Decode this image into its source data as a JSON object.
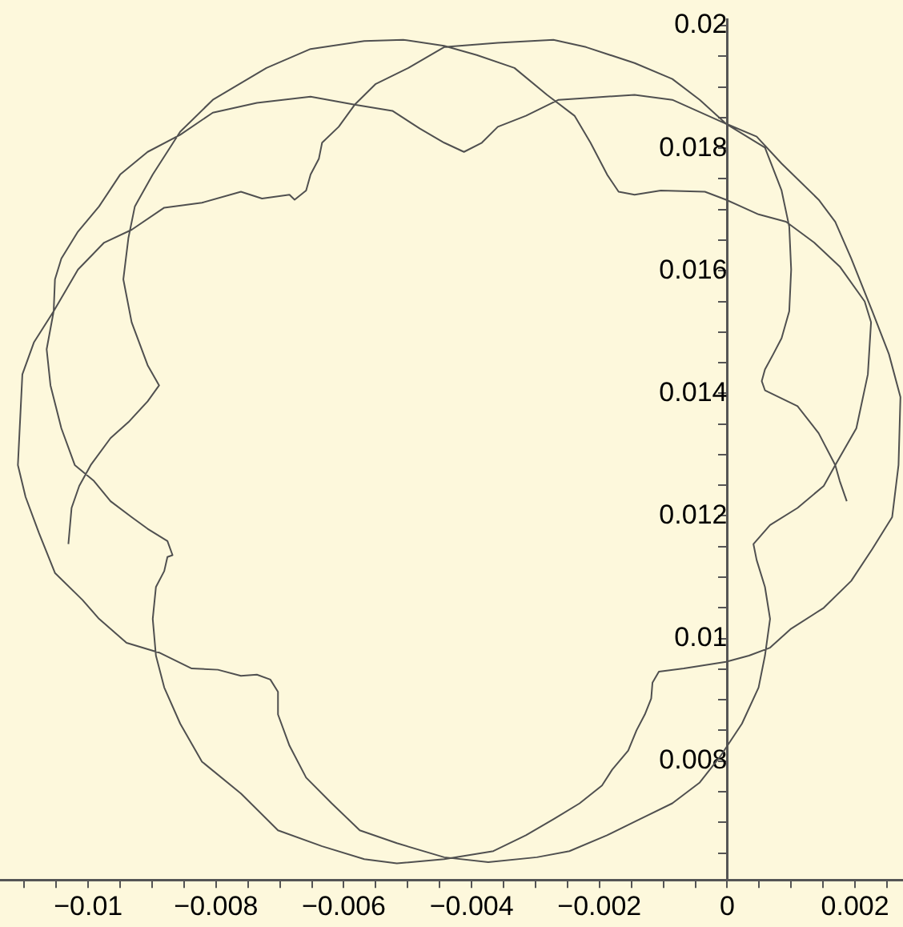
{
  "chart_data": {
    "type": "line",
    "color": "#505050",
    "marker": "none",
    "grid": false,
    "legend": false,
    "line_style": "solid",
    "x": [
      -0.01031,
      -0.01026,
      -0.01014,
      -0.00996,
      -0.00965,
      -0.00937,
      -0.00907,
      -0.00889,
      -0.00907,
      -0.00932,
      -0.00945,
      -0.00937,
      -0.00927,
      -0.00899,
      -0.00856,
      -0.00805,
      -0.00721,
      -0.00652,
      -0.00568,
      -0.00507,
      -0.00443,
      -0.00392,
      -0.00333,
      -0.00282,
      -0.00239,
      -0.00214,
      -0.00188,
      -0.0017,
      -0.00145,
      -0.00104,
      -0.00035,
      -2e-05,
      0.00049,
      0.00092,
      0.00136,
      0.00176,
      0.00215,
      0.00225,
      0.0022,
      0.00202,
      0.00169,
      0.00151,
      0.0011,
      0.00067,
      0.00041,
      0.00046,
      0.00059,
      0.00067,
      0.00059,
      0.00049,
      0.00023,
      -0.0001,
      -0.00043,
      -0.00086,
      -0.00137,
      -0.00188,
      -0.00247,
      -0.00298,
      -0.00374,
      -0.00443,
      -0.00517,
      -0.00575,
      -0.00619,
      -0.00659,
      -0.00685,
      -0.00703,
      -0.00703,
      -0.00715,
      -0.00736,
      -0.00761,
      -0.00797,
      -0.00838,
      -0.00889,
      -0.0094,
      -0.00983,
      -0.01009,
      -0.01052,
      -0.01077,
      -0.01098,
      -0.0111,
      -0.01103,
      -0.01085,
      -0.01054,
      -0.01016,
      -0.00975,
      -0.00932,
      -0.00881,
      -0.00822,
      -0.00761,
      -0.00728,
      -0.00685,
      -0.00677,
      -0.00659,
      -0.00652,
      -0.00639,
      -0.00634,
      -0.00608,
      -0.00583,
      -0.0055,
      -0.00499,
      -0.00443,
      -0.00359,
      -0.00272,
      -0.00221,
      -0.00145,
      -0.00086,
      -0.00043,
      -2e-05,
      0.00046,
      0.00085,
      0.00143,
      0.00169,
      0.00194,
      0.00227,
      0.00253,
      0.00271,
      0.00268,
      0.00258,
      0.00227,
      0.00194,
      0.00151,
      0.001,
      0.00067,
      0.00034,
      -2e-05,
      -0.00068,
      -0.00107,
      -0.00117,
      -0.00119,
      -0.00129,
      -0.00142,
      -0.00155,
      -0.0018,
      -0.00196,
      -0.00231,
      -0.00272,
      -0.00315,
      -0.00366,
      -0.00443,
      -0.00517,
      -0.00568,
      -0.00634,
      -0.00703,
      -0.00761,
      -0.00822,
      -0.00856,
      -0.00881,
      -0.00894,
      -0.00899,
      -0.00894,
      -0.00881,
      -0.00876,
      -0.00868,
      -0.00876,
      -0.00907,
      -0.00932,
      -0.00965,
      -0.00991,
      -0.01021,
      -0.01042,
      -0.01059,
      -0.01065,
      -0.01054,
      -0.01052,
      -0.01042,
      -0.01016,
      -0.00983,
      -0.0095,
      -0.00907,
      -0.00856,
      -0.00805,
      -0.00736,
      -0.00652,
      -0.00583,
      -0.00524,
      -0.00481,
      -0.00443,
      -0.00412,
      -0.00384,
      -0.00359,
      -0.00315,
      -0.00264,
      -0.00221,
      -0.00145,
      -0.00086,
      -2e-05,
      0.00059,
      0.00085,
      0.00097,
      0.001,
      0.00097,
      0.00085,
      0.00072,
      0.00059,
      0.00054,
      0.00059,
      0.0011,
      0.00143,
      0.00169,
      0.00176,
      0.00187
    ],
    "values": [
      0.01154,
      0.01213,
      0.01249,
      0.01283,
      0.01327,
      0.01353,
      0.01387,
      0.01413,
      0.01446,
      0.01516,
      0.01586,
      0.01654,
      0.01705,
      0.01757,
      0.01827,
      0.01879,
      0.01931,
      0.01962,
      0.01975,
      0.01977,
      0.01967,
      0.01952,
      0.01931,
      0.01887,
      0.01853,
      0.01809,
      0.01757,
      0.01729,
      0.01724,
      0.01731,
      0.01729,
      0.01716,
      0.01692,
      0.0168,
      0.01646,
      0.01607,
      0.0155,
      0.01516,
      0.01431,
      0.01343,
      0.01283,
      0.01249,
      0.01213,
      0.01185,
      0.01154,
      0.01128,
      0.01084,
      0.01032,
      0.00972,
      0.0092,
      0.00861,
      0.00809,
      0.00765,
      0.00731,
      0.00705,
      0.00679,
      0.00653,
      0.00643,
      0.00635,
      0.00643,
      0.00666,
      0.00687,
      0.00731,
      0.00773,
      0.00825,
      0.00876,
      0.00913,
      0.00933,
      0.00941,
      0.00939,
      0.00949,
      0.00951,
      0.00977,
      0.00993,
      0.01032,
      0.01063,
      0.01107,
      0.01172,
      0.01231,
      0.01283,
      0.01431,
      0.01483,
      0.01534,
      0.01602,
      0.01646,
      0.01667,
      0.01703,
      0.01711,
      0.01729,
      0.01718,
      0.01724,
      0.01716,
      0.01731,
      0.01757,
      0.01783,
      0.01809,
      0.01835,
      0.01871,
      0.01905,
      0.01931,
      0.01965,
      0.01972,
      0.01977,
      0.01965,
      0.01939,
      0.01913,
      0.01879,
      0.0184,
      0.01819,
      0.01775,
      0.01716,
      0.0168,
      0.0162,
      0.01534,
      0.01464,
      0.01394,
      0.01283,
      0.01198,
      0.01146,
      0.01094,
      0.0105,
      0.01016,
      0.00985,
      0.00972,
      0.00962,
      0.00951,
      0.00946,
      0.00928,
      0.00902,
      0.00876,
      0.0085,
      0.00817,
      0.00786,
      0.0076,
      0.00731,
      0.00705,
      0.00679,
      0.00653,
      0.0064,
      0.00633,
      0.0064,
      0.00661,
      0.00687,
      0.00747,
      0.00799,
      0.00861,
      0.0092,
      0.00972,
      0.01032,
      0.01084,
      0.0111,
      0.01133,
      0.01136,
      0.01159,
      0.01179,
      0.01198,
      0.01224,
      0.01257,
      0.01283,
      0.01343,
      0.01413,
      0.01472,
      0.01534,
      0.01586,
      0.0162,
      0.01664,
      0.01705,
      0.01757,
      0.01794,
      0.01822,
      0.01858,
      0.01874,
      0.01884,
      0.01871,
      0.01861,
      0.01832,
      0.01809,
      0.01794,
      0.01809,
      0.01835,
      0.01853,
      0.01879,
      0.01882,
      0.01887,
      0.01879,
      0.0184,
      0.01801,
      0.01731,
      0.01672,
      0.01602,
      0.01534,
      0.0149,
      0.01464,
      0.01439,
      0.0142,
      0.01405,
      0.01379,
      0.01335,
      0.01283,
      0.01257,
      0.01224
    ],
    "xlim": [
      -0.01138,
      0.00275
    ],
    "xticks": [
      {
        "value": -0.011,
        "label": null
      },
      {
        "value": -0.0105,
        "label": null
      },
      {
        "value": -0.01,
        "label": "−0.01"
      },
      {
        "value": -0.0095,
        "label": null
      },
      {
        "value": -0.009,
        "label": null
      },
      {
        "value": -0.0085,
        "label": null
      },
      {
        "value": -0.008,
        "label": "−0.008"
      },
      {
        "value": -0.0075,
        "label": null
      },
      {
        "value": -0.007,
        "label": null
      },
      {
        "value": -0.0065,
        "label": null
      },
      {
        "value": -0.006,
        "label": "−0.006"
      },
      {
        "value": -0.0055,
        "label": null
      },
      {
        "value": -0.005,
        "label": null
      },
      {
        "value": -0.0045,
        "label": null
      },
      {
        "value": -0.004,
        "label": "−0.004"
      },
      {
        "value": -0.0035,
        "label": null
      },
      {
        "value": -0.003,
        "label": null
      },
      {
        "value": -0.0025,
        "label": null
      },
      {
        "value": -0.002,
        "label": "−0.002"
      },
      {
        "value": -0.0015,
        "label": null
      },
      {
        "value": -0.001,
        "label": null
      },
      {
        "value": -0.0005,
        "label": null
      },
      0,
      {
        "value": 0.0005,
        "label": null
      },
      {
        "value": 0.001,
        "label": null
      },
      {
        "value": 0.0015,
        "label": null
      },
      0.002,
      {
        "value": 0.0025,
        "label": null
      }
    ],
    "ylim": [
      0.00606,
      0.0201
    ],
    "yticks": [
      {
        "value": 0.0065,
        "label": null
      },
      {
        "value": 0.007,
        "label": null
      },
      {
        "value": 0.0075,
        "label": null
      },
      0.008,
      {
        "value": 0.0085,
        "label": null
      },
      {
        "value": 0.009,
        "label": null
      },
      {
        "value": 0.0095,
        "label": null
      },
      0.01,
      {
        "value": 0.0105,
        "label": null
      },
      {
        "value": 0.011,
        "label": null
      },
      {
        "value": 0.0115,
        "label": null
      },
      0.012,
      {
        "value": 0.0125,
        "label": null
      },
      {
        "value": 0.013,
        "label": null
      },
      {
        "value": 0.0135,
        "label": null
      },
      0.014,
      {
        "value": 0.0145,
        "label": null
      },
      {
        "value": 0.015,
        "label": null
      },
      {
        "value": 0.0155,
        "label": null
      },
      0.016,
      {
        "value": 0.0165,
        "label": null
      },
      {
        "value": 0.017,
        "label": null
      },
      {
        "value": 0.0175,
        "label": null
      },
      0.018,
      {
        "value": 0.0185,
        "label": null
      },
      {
        "value": 0.019,
        "label": null
      },
      {
        "value": 0.0195,
        "label": null
      },
      0.02
    ]
  }
}
